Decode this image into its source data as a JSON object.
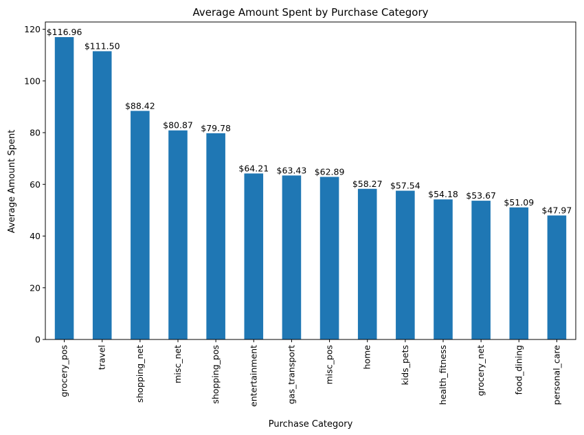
{
  "chart_data": {
    "type": "bar",
    "title": "Average Amount Spent by Purchase Category",
    "xlabel": "Purchase Category",
    "ylabel": "Average Amount Spent",
    "ylim": [
      0,
      122.8
    ],
    "yticks": [
      0,
      20,
      40,
      60,
      80,
      100,
      120
    ],
    "bar_color": "#1f77b4",
    "grid": false,
    "legend": "none",
    "categories": [
      "grocery_pos",
      "travel",
      "shopping_net",
      "misc_net",
      "shopping_pos",
      "entertainment",
      "gas_transport",
      "misc_pos",
      "home",
      "kids_pets",
      "health_fitness",
      "grocery_net",
      "food_dining",
      "personal_care"
    ],
    "values": [
      116.96,
      111.5,
      88.42,
      80.87,
      79.78,
      64.21,
      63.43,
      62.89,
      58.27,
      57.54,
      54.18,
      53.67,
      51.09,
      47.97
    ],
    "data_labels": [
      "$116.96",
      "$111.50",
      "$88.42",
      "$80.87",
      "$79.78",
      "$64.21",
      "$63.43",
      "$62.89",
      "$58.27",
      "$57.54",
      "$54.18",
      "$53.67",
      "$51.09",
      "$47.97"
    ]
  }
}
